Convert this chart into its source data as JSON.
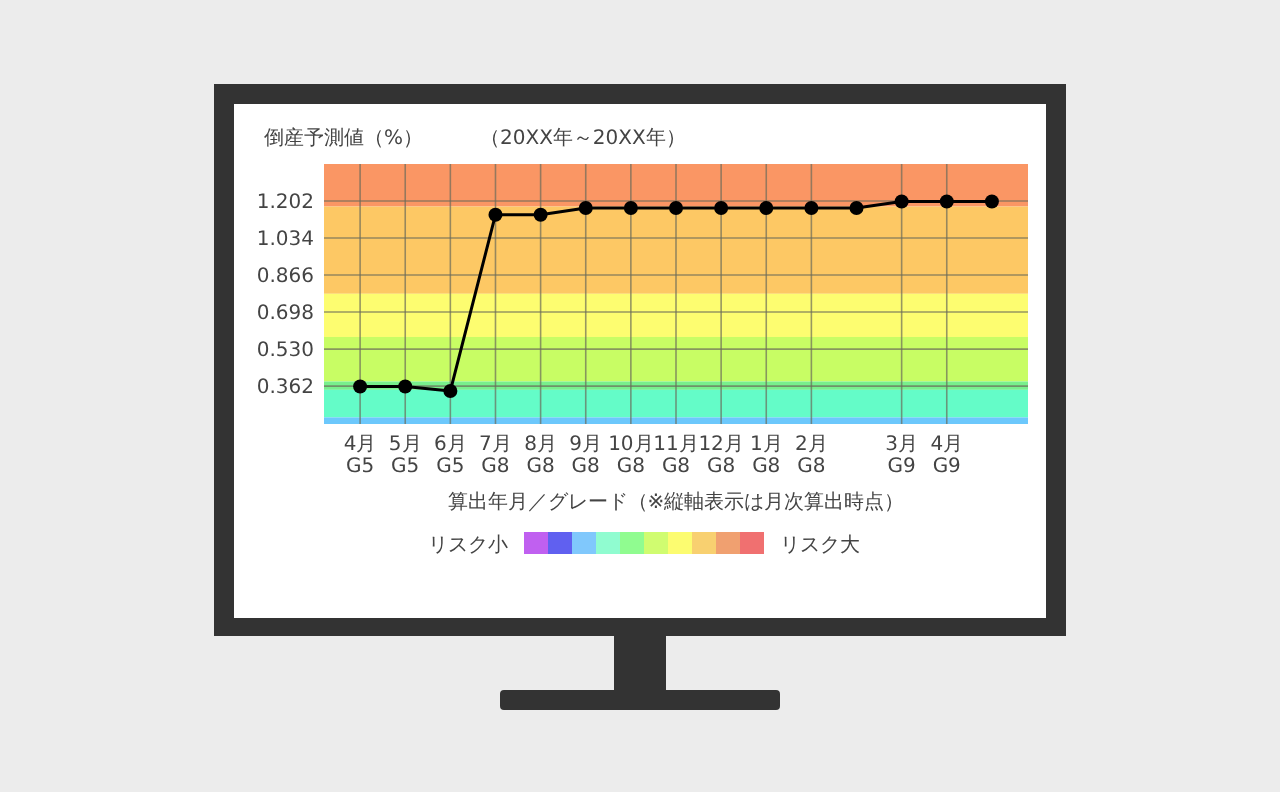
{
  "chart_data": {
    "type": "line",
    "title": "倒産予測値（%）",
    "subtitle": "（20XX年～20XX年）",
    "xlabel": "算出年月／グレード（※縦軸表示は月次算出時点）",
    "annotations": [
      "リスク小",
      "リスク大"
    ],
    "categories": [
      "4月\nG5",
      "5月\nG5",
      "6月\nG5",
      "7月\nG8",
      "8月\nG8",
      "9月\nG8",
      "10月\nG8",
      "11月\nG8",
      "12月\nG8",
      "1月\nG8",
      "2月\nG8",
      null,
      "3月\nG9",
      "4月\nG9",
      null
    ],
    "values": [
      0.36,
      0.36,
      0.34,
      1.14,
      1.14,
      1.17,
      1.17,
      1.17,
      1.17,
      1.17,
      1.17,
      1.17,
      1.2,
      1.2,
      1.2
    ],
    "color": "#000000",
    "marker": "circle",
    "grid": true,
    "ylim": [
      0.19,
      1.37
    ],
    "yticks": [
      0.362,
      {
        "value": 0.53,
        "label": "0.530"
      },
      0.698,
      0.866,
      1.034,
      1.202
    ],
    "bands": [
      {
        "axis": "y",
        "from": 1.177,
        "to": 1.37,
        "color": "#fa9664"
      },
      {
        "axis": "y",
        "from": 0.781,
        "to": 1.177,
        "color": "#fdc864"
      },
      {
        "axis": "y",
        "from": 0.585,
        "to": 0.781,
        "color": "#fdfd70"
      },
      {
        "axis": "y",
        "from": 0.383,
        "to": 0.585,
        "color": "#c8fd64"
      },
      {
        "axis": "y",
        "from": 0.345,
        "to": 0.383,
        "color": "#78f08c"
      },
      {
        "axis": "y",
        "from": 0.22,
        "to": 0.345,
        "color": "#64fcc8"
      },
      {
        "axis": "y",
        "from": 0.19,
        "to": 0.22,
        "color": "#6cc8fc"
      }
    ]
  }
}
